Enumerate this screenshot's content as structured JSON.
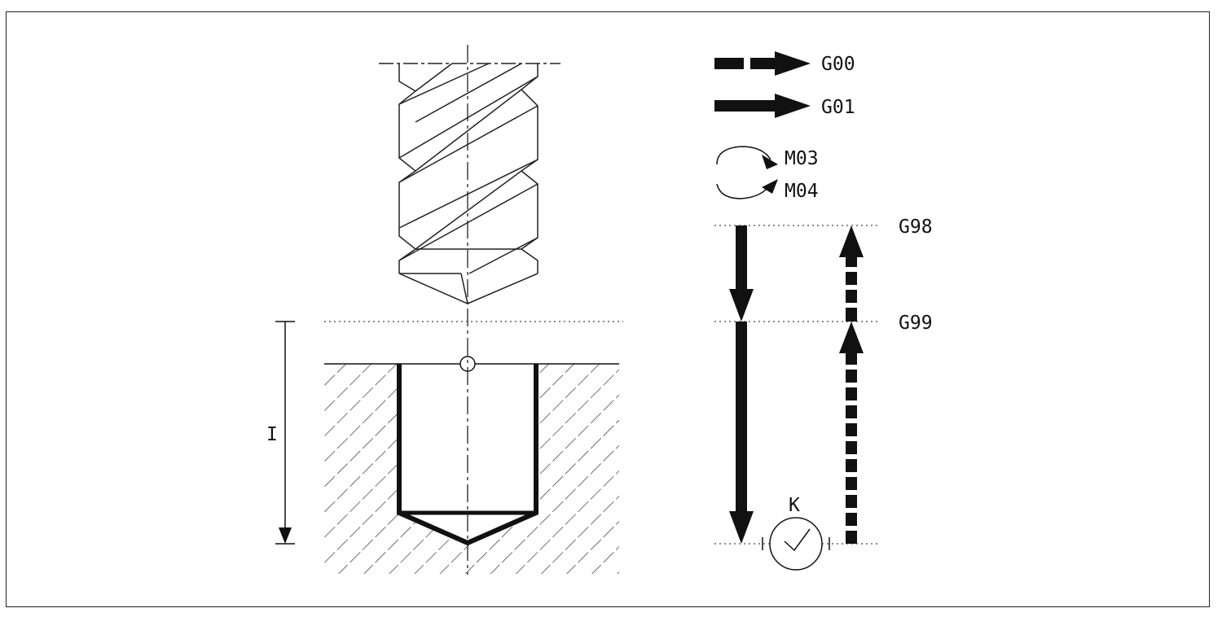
{
  "legend": {
    "rapid_label": "G00",
    "feed_label": "G01",
    "cw_label": "M03",
    "ccw_label": "M04"
  },
  "planes": {
    "initial_label": "G98",
    "reference_label": "G99"
  },
  "depth_label": "I",
  "dwell_label": "K",
  "colors": {
    "ink": "#111111",
    "hatch": "#333333",
    "background": "#ffffff"
  }
}
